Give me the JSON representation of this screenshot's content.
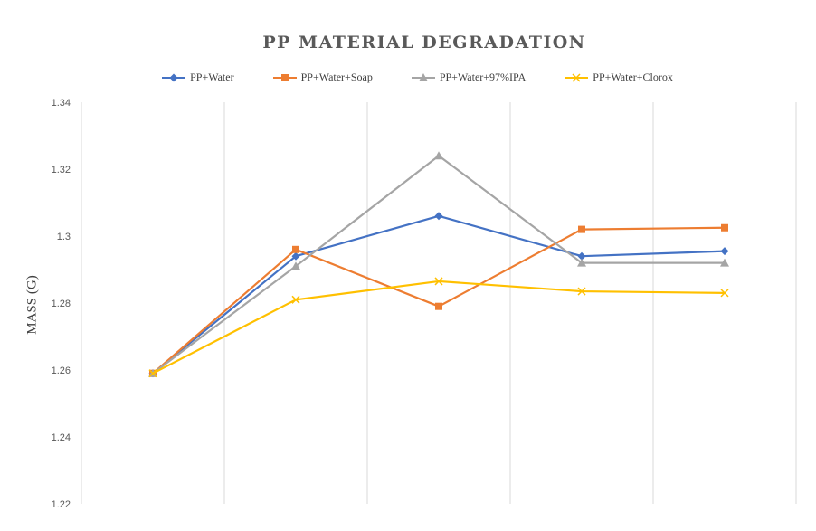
{
  "chart_data": {
    "type": "line",
    "title": "PP MATERIAL DEGRADATION",
    "xlabel": "",
    "ylabel": "MASS (G)",
    "ylim": [
      1.22,
      1.34
    ],
    "yticks": [
      "1.22",
      "1.24",
      "1.26",
      "1.28",
      "1.3",
      "1.32",
      "1.34"
    ],
    "x": [
      1,
      2,
      3,
      4,
      5
    ],
    "grid": "vertical",
    "legend_position": "top",
    "series": [
      {
        "name": "PP+Water",
        "color": "#4472C4",
        "marker": "diamond",
        "values": [
          1.259,
          1.294,
          1.306,
          1.294,
          1.2955
        ]
      },
      {
        "name": "PP+Water+Soap",
        "color": "#ED7D31",
        "marker": "square",
        "values": [
          1.259,
          1.296,
          1.279,
          1.302,
          1.3025
        ]
      },
      {
        "name": "PP+Water+97%IPA",
        "color": "#A5A5A5",
        "marker": "triangle",
        "values": [
          1.259,
          1.291,
          1.324,
          1.292,
          1.292
        ]
      },
      {
        "name": "PP+Water+Clorox",
        "color": "#FFC000",
        "marker": "x",
        "values": [
          1.259,
          1.281,
          1.2865,
          1.2835,
          1.283
        ]
      }
    ]
  }
}
